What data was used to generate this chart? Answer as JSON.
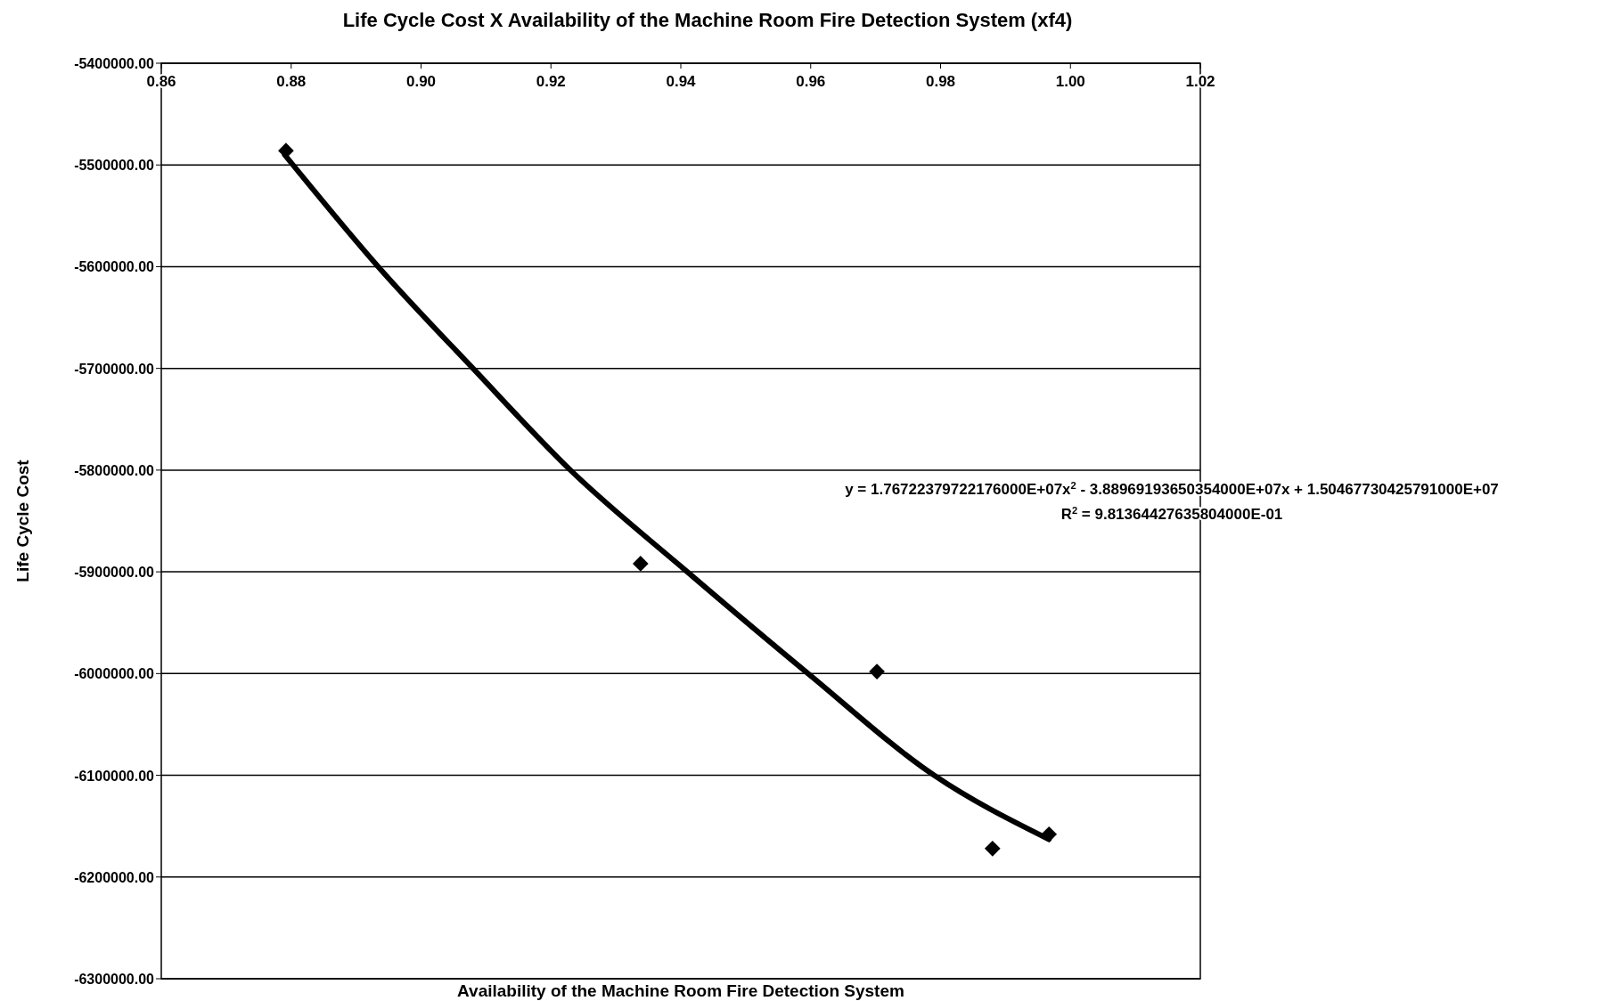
{
  "chart_data": {
    "type": "scatter",
    "title": "Life Cycle Cost X Availability of the Machine Room Fire Detection System (xf4)",
    "xlabel": "Availability of the Machine Room Fire Detection System",
    "ylabel": "Life Cycle Cost",
    "xlim": [
      0.86,
      1.02
    ],
    "xticks": [
      {
        "value": 0.86,
        "label": "0.86"
      },
      {
        "value": 0.88,
        "label": "0.88"
      },
      {
        "value": 0.9,
        "label": "0.90"
      },
      {
        "value": 0.92,
        "label": "0.92"
      },
      {
        "value": 0.94,
        "label": "0.94"
      },
      {
        "value": 0.96,
        "label": "0.96"
      },
      {
        "value": 0.98,
        "label": "0.98"
      },
      {
        "value": 1.0,
        "label": "1.00"
      },
      {
        "value": 1.02,
        "label": "1.02"
      }
    ],
    "ylim": [
      -6300000,
      -5400000
    ],
    "yticks": [
      {
        "value": -6300000,
        "label": "-6300000.00"
      },
      {
        "value": -6200000,
        "label": "-6200000.00"
      },
      {
        "value": -6100000,
        "label": "-6100000.00"
      },
      {
        "value": -6000000,
        "label": "-6000000.00"
      },
      {
        "value": -5900000,
        "label": "-5900000.00"
      },
      {
        "value": -5800000,
        "label": "-5800000.00"
      },
      {
        "value": -5700000,
        "label": "-5700000.00"
      },
      {
        "value": -5600000,
        "label": "-5600000.00"
      },
      {
        "value": -5500000,
        "label": "-5500000.00"
      },
      {
        "value": -5400000,
        "label": "-5400000.00"
      }
    ],
    "grid": "y",
    "marker": "diamond",
    "series": [
      {
        "color": "#000000",
        "x": [
          0.8792,
          0.9338,
          0.9702,
          0.988,
          0.9967
        ],
        "values": [
          -5486000,
          -5892000,
          -5998000,
          -6172000,
          -6158000
        ]
      },
      {
        "type": "line",
        "color": "#000000",
        "marker": "none",
        "line_style": "solid",
        "x": [
          0.879,
          0.8934,
          0.908,
          0.923,
          0.941,
          0.9596,
          0.979,
          0.9967
        ],
        "values": [
          -5490000,
          -5600000,
          -5700000,
          -5800000,
          -5900000,
          -6000000,
          -6100000,
          -6163000
        ]
      }
    ],
    "annotations": [
      "y = 1.76722379722176000E+07x$^{2}$ - 3.88969193650354000E+07x + 1.50467730425791000E+07",
      "R$^{2}$ = 9.81364427635804000E-01"
    ]
  }
}
